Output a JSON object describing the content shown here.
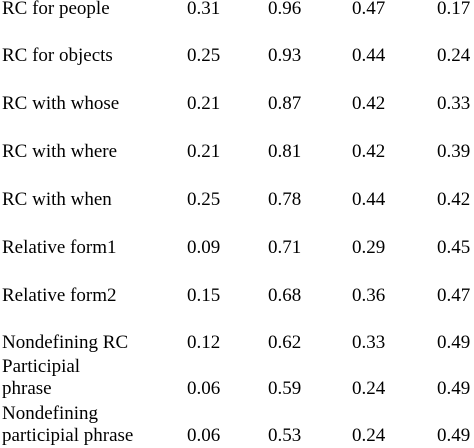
{
  "table": {
    "rows": [
      {
        "label": "RC for people",
        "values": [
          "0.31",
          "0.96",
          "0.47",
          "0.17"
        ]
      },
      {
        "label": "RC for objects",
        "values": [
          "0.25",
          "0.93",
          "0.44",
          "0.24"
        ]
      },
      {
        "label": "RC with whose",
        "values": [
          "0.21",
          "0.87",
          "0.42",
          "0.33"
        ]
      },
      {
        "label": "RC with where",
        "values": [
          "0.21",
          "0.81",
          "0.42",
          "0.39"
        ]
      },
      {
        "label": "RC with when",
        "values": [
          "0.25",
          "0.78",
          "0.44",
          "0.42"
        ]
      },
      {
        "label": "Relative form1",
        "values": [
          "0.09",
          "0.71",
          "0.29",
          "0.45"
        ]
      },
      {
        "label": "Relative form2",
        "values": [
          "0.15",
          "0.68",
          "0.36",
          "0.47"
        ]
      },
      {
        "label": "Nondefining RC",
        "values": [
          "0.12",
          "0.62",
          "0.33",
          "0.49"
        ]
      },
      {
        "label_line1": "Participial",
        "label_line2": "phrase",
        "values": [
          "0.06",
          "0.59",
          "0.24",
          "0.49"
        ]
      },
      {
        "label_line1": "Nondefining",
        "label_line2": "participial phrase",
        "values": [
          "0.06",
          "0.53",
          "0.24",
          "0.49"
        ]
      }
    ]
  }
}
